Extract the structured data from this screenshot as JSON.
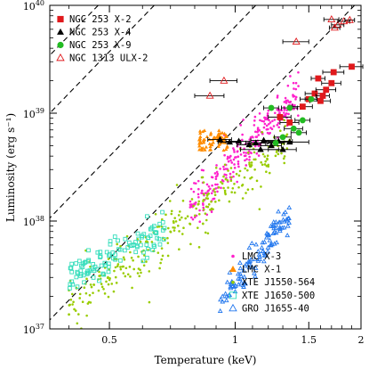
{
  "chart_data": {
    "type": "scatter",
    "xlabel": "Temperature (keV)",
    "ylabel": "Luminosity (erg s⁻¹)",
    "x_scale": "log",
    "y_scale": "log",
    "xlim": [
      0.36,
      2.0
    ],
    "ylim": [
      1e+37,
      1e+40
    ],
    "x_ticks": [
      {
        "value": 0.5,
        "label": "0.5"
      },
      {
        "value": 1.0,
        "label": "1"
      },
      {
        "value": 1.5,
        "label": "1.5"
      },
      {
        "value": 2.0,
        "label": "2"
      }
    ],
    "y_ticks": [
      {
        "value": 1e+37,
        "label": "10",
        "exp": "37"
      },
      {
        "value": 1e+38,
        "label": "10",
        "exp": "38"
      },
      {
        "value": 1e+39,
        "label": "10",
        "exp": "39"
      },
      {
        "value": 1e+40,
        "label": "10",
        "exp": "40"
      }
    ],
    "reference_lines": [
      {
        "style": "dashed",
        "x_at_top": 0.47
      },
      {
        "style": "dashed",
        "x_at_top": 0.64
      },
      {
        "style": "dashed",
        "x_at_top": 1.12
      },
      {
        "style": "dashed",
        "x_at_top": 1.93
      }
    ],
    "legend_top": [
      {
        "name": "NGC 253 X-2",
        "marker": "square",
        "color": "#e0191c",
        "filled": true
      },
      {
        "name": "NGC 253 X-4",
        "marker": "triangle",
        "color": "#000000",
        "filled": true
      },
      {
        "name": "NGC 253 X-9",
        "marker": "circle",
        "color": "#22bb22",
        "filled": true
      },
      {
        "name": "NGC 1313 ULX-2",
        "marker": "triangle",
        "color": "#e0191c",
        "filled": false
      }
    ],
    "legend_bottom": [
      {
        "name": "LMC X-3",
        "marker": "dot",
        "color": "#ff22cc",
        "filled": true
      },
      {
        "name": "LMC X-1",
        "marker": "triangle",
        "color": "#ff8c00",
        "filled": true
      },
      {
        "name": "XTE J1550-564",
        "marker": "dot",
        "color": "#99cc00",
        "filled": true
      },
      {
        "name": "XTE J1650-500",
        "marker": "square",
        "color": "#33ddbb",
        "filled": false
      },
      {
        "name": "GRO J1655-40",
        "marker": "triangle",
        "color": "#2277ee",
        "filled": false
      }
    ],
    "series": [
      {
        "name": "NGC 253 X-2",
        "marker": "square",
        "color": "#e0191c",
        "filled": true,
        "error_bars": true,
        "points": [
          [
            1.28,
            9.2e+38,
            0.08
          ],
          [
            1.45,
            1.15e+39,
            0.08
          ],
          [
            1.5,
            1.35e+39,
            0.07
          ],
          [
            1.55,
            1.52e+39,
            0.08
          ],
          [
            1.6,
            1.3e+39,
            0.09
          ],
          [
            1.65,
            1.65e+39,
            0.09
          ],
          [
            1.58,
            2.1e+39,
            0.06
          ],
          [
            1.7,
            1.9e+39,
            0.09
          ],
          [
            1.72,
            2.4e+39,
            0.1
          ],
          [
            1.9,
            2.7e+39,
            0.12
          ],
          [
            1.35,
            8.2e+38,
            0.07
          ],
          [
            1.62,
            1.45e+39,
            0.06
          ]
        ]
      },
      {
        "name": "NGC 253 X-4",
        "marker": "triangle",
        "color": "#000000",
        "filled": true,
        "error_bars": true,
        "points": [
          [
            0.92,
            5.7e+38,
            0.06
          ],
          [
            0.97,
            5.4e+38,
            0.06
          ],
          [
            1.02,
            5.5e+38,
            0.07
          ],
          [
            1.08,
            5.1e+38,
            0.07
          ],
          [
            1.12,
            5.3e+38,
            0.06
          ],
          [
            1.17,
            5.6e+38,
            0.08
          ],
          [
            1.22,
            5e+38,
            0.07
          ],
          [
            1.27,
            5.5e+38,
            0.1
          ],
          [
            1.3,
            4.6e+38,
            0.1
          ],
          [
            1.35,
            5.4e+38,
            0.15
          ],
          [
            1.15,
            4.6e+38,
            0.12
          ]
        ]
      },
      {
        "name": "NGC 253 X-9",
        "marker": "circle",
        "color": "#22bb22",
        "filled": true,
        "error_bars": true,
        "points": [
          [
            1.22,
            1.12e+39,
            0.05
          ],
          [
            1.35,
            1.12e+39,
            0.06
          ],
          [
            1.45,
            8.6e+38,
            0.06
          ],
          [
            1.38,
            7.2e+38,
            0.07
          ],
          [
            1.3,
            6e+38,
            0.06
          ],
          [
            1.52,
            1.35e+39,
            0.05
          ],
          [
            1.25,
            5.3e+38,
            0.06
          ],
          [
            1.42,
            6.6e+38,
            0.06
          ]
        ]
      },
      {
        "name": "NGC 1313 ULX-2",
        "marker": "triangle",
        "color": "#e0191c",
        "filled": false,
        "error_bars": true,
        "points": [
          [
            0.87,
            1.45e+39,
            0.07
          ],
          [
            0.94,
            2e+39,
            0.07
          ],
          [
            1.4,
            4.6e+39,
            0.1
          ],
          [
            1.7,
            7.4e+39,
            0.07
          ],
          [
            1.76,
            6.6e+39,
            0.06
          ],
          [
            1.82,
            7.1e+39,
            0.06
          ],
          [
            1.73,
            6.2e+39,
            0.05
          ],
          [
            1.88,
            7.3e+39,
            0.05
          ]
        ]
      }
    ],
    "clouds": [
      {
        "name": "LMC X-3",
        "marker": "dot",
        "color": "#ff22cc",
        "filled": true,
        "x_range": [
          0.78,
          1.42
        ],
        "y_log_center_at_1keV": 38.57,
        "slope": 4.0,
        "spread": 0.1,
        "count": 260
      },
      {
        "name": "LMC X-1",
        "marker": "triangle",
        "color": "#ff8c00",
        "filled": true,
        "x_range": [
          0.82,
          0.96
        ],
        "y_range": [
          4.5e+38,
          7e+38
        ],
        "count": 70
      },
      {
        "name": "XTE J1550-564",
        "marker": "dot",
        "color": "#99cc00",
        "filled": true,
        "x_range": [
          0.4,
          1.35
        ],
        "y_log_center_at_1keV": 38.37,
        "slope": 2.9,
        "spread": 0.13,
        "count": 300
      },
      {
        "name": "XTE J1650-500",
        "marker": "square",
        "color": "#33ddbb",
        "filled": false,
        "x_range": [
          0.4,
          0.68
        ],
        "y_log_center_at_1keV": 38.2,
        "slope": 1.8,
        "spread": 0.09,
        "count": 110
      },
      {
        "name": "GRO J1655-40",
        "marker": "triangle",
        "color": "#2277ee",
        "filled": false,
        "x_range": [
          0.92,
          1.35
        ],
        "y_log_center_at_1keV": 37.44,
        "slope": 4.8,
        "spread": 0.07,
        "count": 110
      }
    ]
  }
}
